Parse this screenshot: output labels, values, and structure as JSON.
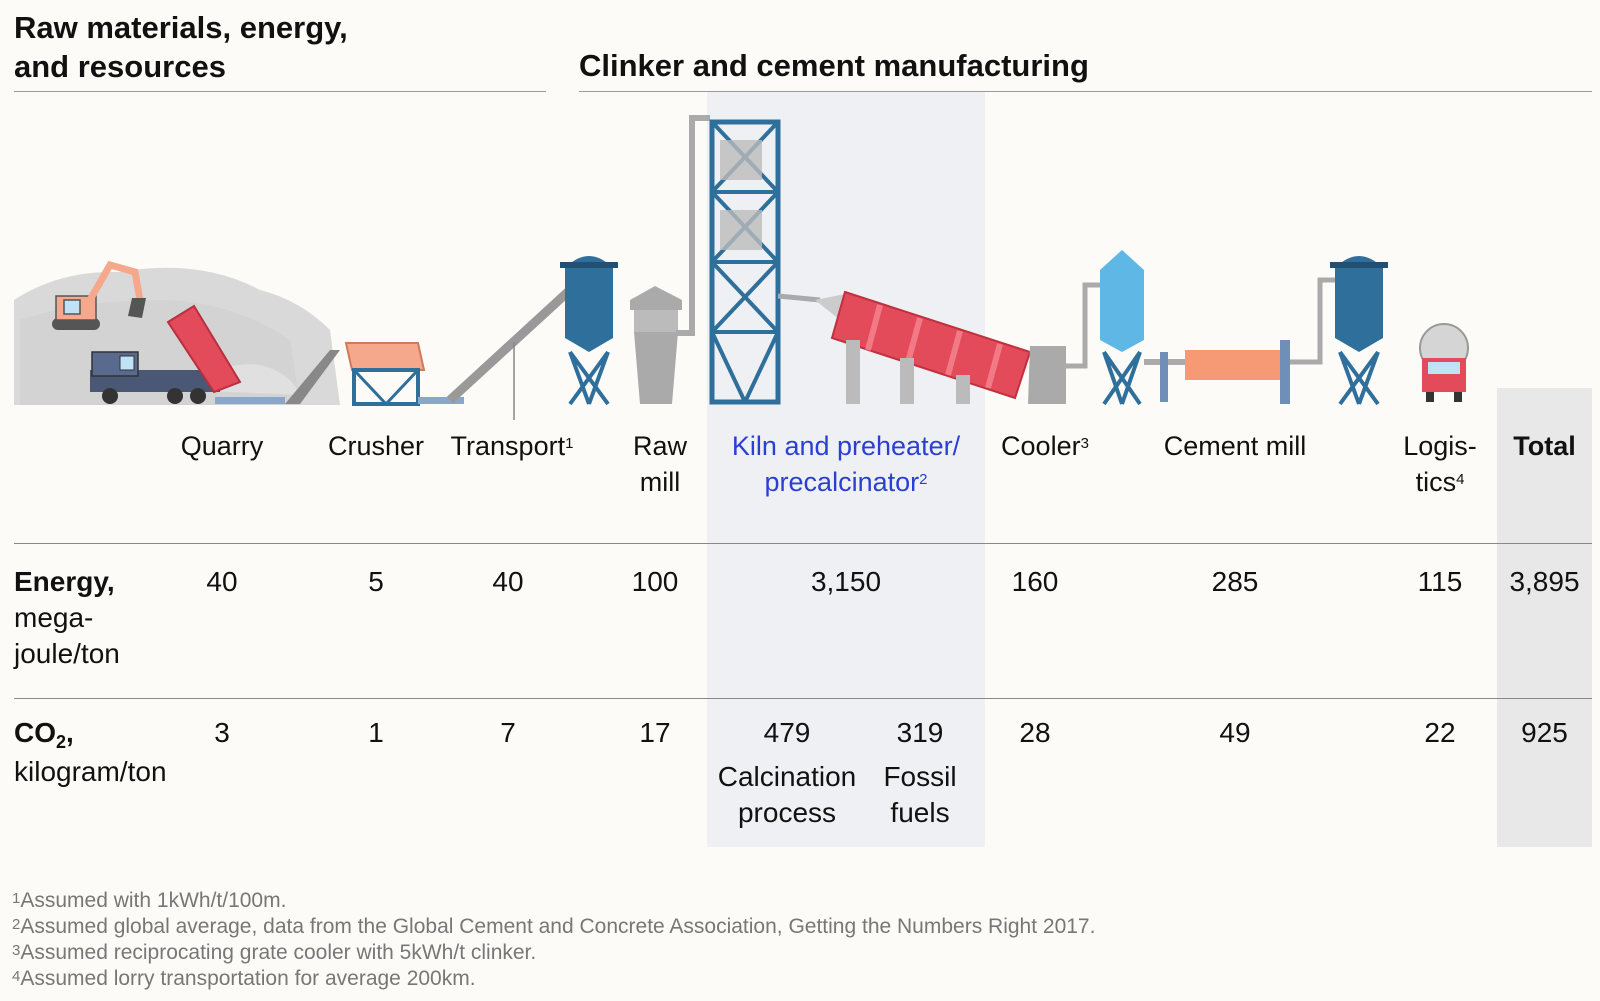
{
  "headers": {
    "left": [
      "Raw materials, energy,",
      "and resources"
    ],
    "right": "Clinker and cement manufacturing"
  },
  "columns": [
    {
      "id": "quarry",
      "label": [
        "Quarry"
      ],
      "sup": ""
    },
    {
      "id": "crusher",
      "label": [
        "Crusher"
      ],
      "sup": ""
    },
    {
      "id": "transport",
      "label": [
        "Transport"
      ],
      "sup": "1"
    },
    {
      "id": "raw-mill",
      "label": [
        "Raw",
        "mill"
      ],
      "sup": ""
    },
    {
      "id": "kiln",
      "label": [
        "Kiln and preheater/",
        "precalcinator"
      ],
      "sup": "2"
    },
    {
      "id": "cooler",
      "label": [
        "Cooler"
      ],
      "sup": "3"
    },
    {
      "id": "cement-mill",
      "label": [
        "Cement mill"
      ],
      "sup": ""
    },
    {
      "id": "logistics",
      "label": [
        "Logis-",
        "tics"
      ],
      "sup": "4"
    },
    {
      "id": "total",
      "label": [
        "Total"
      ],
      "sup": ""
    }
  ],
  "rows": {
    "energy": {
      "label_bold": "Energy,",
      "label_rest": [
        "mega-",
        "joule/ton"
      ],
      "values": {
        "quarry": "40",
        "crusher": "5",
        "transport": "40",
        "raw-mill": "100",
        "kiln": "3,150",
        "cooler": "160",
        "cement-mill": "285",
        "logistics": "115",
        "total": "3,895"
      }
    },
    "co2": {
      "label_bold": "CO",
      "label_sub": "2",
      "label_comma": ",",
      "label_rest": [
        "kilogram/ton"
      ],
      "values": {
        "quarry": "3",
        "crusher": "1",
        "transport": "7",
        "raw-mill": "17",
        "cooler": "28",
        "cement-mill": "49",
        "logistics": "22",
        "total": "925"
      },
      "kiln_split": [
        {
          "value": "479",
          "label": [
            "Calcination",
            "process"
          ]
        },
        {
          "value": "319",
          "label": [
            "Fossil",
            "fuels"
          ]
        }
      ]
    }
  },
  "footnotes": [
    {
      "num": "1",
      "text": "Assumed with 1kWh/t/100m."
    },
    {
      "num": "2",
      "text": "Assumed global average, data from the Global Cement and Concrete Association, Getting the Numbers Right 2017."
    },
    {
      "num": "3",
      "text": "Assumed reciprocating grate cooler with 5kWh/t clinker."
    },
    {
      "num": "4",
      "text": "Assumed lorry transportation for average 200km."
    }
  ],
  "colors": {
    "highlight_blue": "#2a3fd4",
    "kiln_band": "#eef0f3",
    "total_band": "#e8e8e8",
    "steel_blue": "#2f6f9c",
    "kiln_red": "#e34a5a",
    "mill_orange": "#f59a75"
  },
  "icons": [
    "excavator-icon",
    "dump-truck-icon",
    "crusher-icon",
    "conveyor-icon",
    "silo-icon",
    "raw-mill-icon",
    "preheater-tower-icon",
    "rotary-kiln-icon",
    "cooler-icon",
    "cement-mill-icon",
    "tanker-truck-icon"
  ]
}
